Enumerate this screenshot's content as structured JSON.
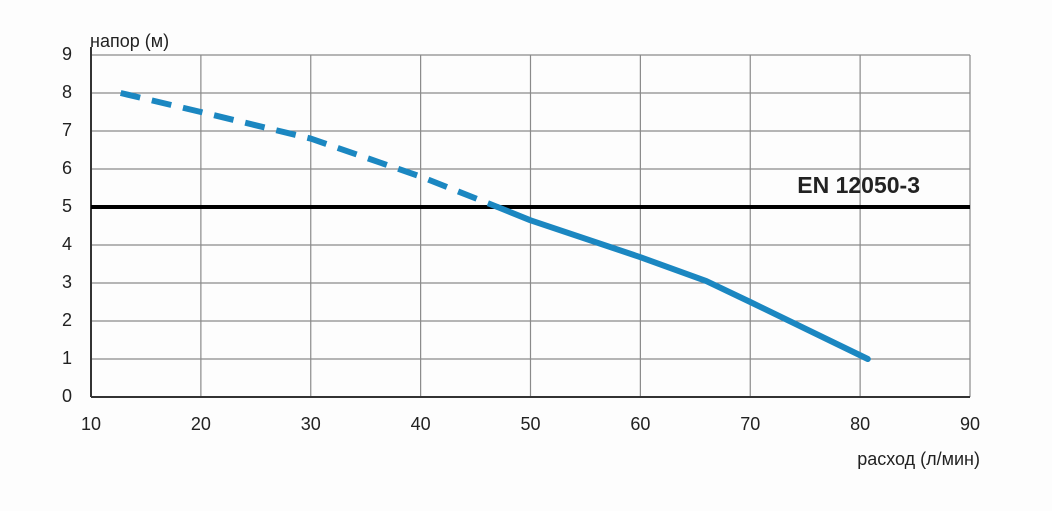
{
  "chart_data": {
    "type": "line",
    "xlabel": "расход (л/мин)",
    "ylabel": "напор (м)",
    "xlim": [
      10,
      90
    ],
    "xticks": [
      10,
      20,
      30,
      40,
      50,
      60,
      70,
      80,
      90
    ],
    "ylim": [
      0,
      9
    ],
    "yticks": [
      0,
      1,
      2,
      3,
      4,
      5,
      6,
      7,
      8,
      9
    ],
    "grid": true,
    "series": [
      {
        "color": "#1b87c1",
        "style": "dashed",
        "x": [
          12.7,
          20,
          30,
          40,
          47
        ],
        "values": [
          8.0,
          7.5,
          6.8,
          5.8,
          5.0
        ]
      },
      {
        "color": "#1b87c1",
        "style": "solid",
        "x": [
          47,
          50,
          60,
          66,
          70,
          80.7
        ],
        "values": [
          5.0,
          4.65,
          3.68,
          3.05,
          2.5,
          1.0
        ]
      }
    ],
    "reference_line": {
      "value": 5,
      "label": "EN 12050-3",
      "color": "#000000",
      "label_color": "#1b87c1"
    }
  }
}
